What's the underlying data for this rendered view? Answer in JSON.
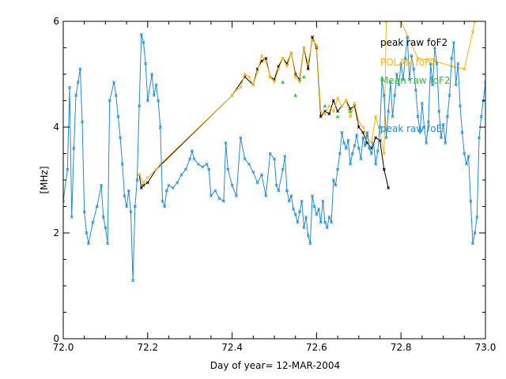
{
  "chart_data": {
    "type": "line",
    "title": "",
    "xlabel": "Day of year= 12-MAR-2004",
    "ylabel": "[MHz]",
    "xlim": [
      72.0,
      73.0
    ],
    "ylim": [
      0,
      6
    ],
    "x_ticks": [
      "72.0",
      "72.2",
      "72.4",
      "72.6",
      "72.8",
      "73.0"
    ],
    "y_ticks": [
      "0",
      "2",
      "4",
      "6"
    ],
    "legend": {
      "placement": "top-right",
      "entries": [
        {
          "label": "peak raw foF2",
          "color": "#000000"
        },
        {
          "label": "POLAN foF2",
          "color": "#ffb400"
        },
        {
          "label": "Mean raw foF2",
          "color": "#22cc22"
        },
        {
          "label": "peak raw foE",
          "color": "#1a8ce6"
        }
      ]
    },
    "series": [
      {
        "name": "peak raw foF2",
        "color": "#000000",
        "marker": "x",
        "points": [
          [
            72.18,
            3.1
          ],
          [
            72.185,
            2.85
          ],
          [
            72.19,
            2.9
          ],
          [
            72.2,
            2.95
          ],
          [
            72.22,
            3.2
          ],
          [
            72.4,
            4.6
          ],
          [
            72.43,
            4.95
          ],
          [
            72.45,
            4.8
          ],
          [
            72.46,
            5.1
          ],
          [
            72.47,
            5.25
          ],
          [
            72.48,
            5.3
          ],
          [
            72.49,
            4.95
          ],
          [
            72.5,
            4.9
          ],
          [
            72.51,
            5.15
          ],
          [
            72.52,
            5.3
          ],
          [
            72.53,
            5.2
          ],
          [
            72.54,
            5.4
          ],
          [
            72.55,
            5.0
          ],
          [
            72.56,
            4.9
          ],
          [
            72.57,
            5.5
          ],
          [
            72.58,
            5.1
          ],
          [
            72.59,
            5.7
          ],
          [
            72.6,
            5.5
          ],
          [
            72.61,
            4.2
          ],
          [
            72.62,
            4.3
          ],
          [
            72.63,
            4.25
          ],
          [
            72.64,
            4.5
          ],
          [
            72.65,
            4.3
          ],
          [
            72.66,
            4.4
          ],
          [
            72.67,
            4.5
          ],
          [
            72.68,
            4.35
          ],
          [
            72.69,
            4.4
          ],
          [
            72.7,
            4.0
          ],
          [
            72.71,
            3.9
          ],
          [
            72.72,
            3.7
          ],
          [
            72.73,
            3.6
          ],
          [
            72.74,
            3.8
          ],
          [
            72.75,
            3.75
          ],
          [
            72.76,
            3.2
          ],
          [
            72.77,
            2.85
          ]
        ]
      },
      {
        "name": "POLAN foF2",
        "color": "#ffb400",
        "marker": "x",
        "points": [
          [
            72.18,
            3.1
          ],
          [
            72.19,
            2.95
          ],
          [
            72.2,
            3.05
          ],
          [
            72.22,
            3.2
          ],
          [
            72.23,
            3.3
          ],
          [
            72.4,
            4.6
          ],
          [
            72.41,
            4.7
          ],
          [
            72.42,
            4.75
          ],
          [
            72.43,
            5.0
          ],
          [
            72.44,
            4.95
          ],
          [
            72.45,
            4.8
          ],
          [
            72.46,
            5.05
          ],
          [
            72.47,
            5.35
          ],
          [
            72.48,
            5.25
          ],
          [
            72.49,
            4.95
          ],
          [
            72.5,
            4.85
          ],
          [
            72.51,
            5.1
          ],
          [
            72.52,
            5.3
          ],
          [
            72.53,
            5.15
          ],
          [
            72.54,
            5.4
          ],
          [
            72.55,
            4.95
          ],
          [
            72.56,
            4.85
          ],
          [
            72.57,
            5.5
          ],
          [
            72.58,
            5.2
          ],
          [
            72.59,
            5.65
          ],
          [
            72.6,
            5.55
          ],
          [
            72.61,
            4.3
          ],
          [
            72.62,
            4.25
          ],
          [
            72.63,
            4.4
          ],
          [
            72.64,
            4.3
          ],
          [
            72.65,
            4.55
          ],
          [
            72.66,
            4.4
          ],
          [
            72.67,
            4.5
          ],
          [
            72.68,
            4.2
          ],
          [
            72.69,
            4.45
          ],
          [
            72.7,
            4.1
          ],
          [
            72.71,
            4.0
          ],
          [
            72.72,
            3.8
          ],
          [
            72.73,
            3.7
          ],
          [
            72.74,
            4.2
          ],
          [
            72.75,
            3.9
          ],
          [
            72.76,
            3.5
          ],
          [
            72.765,
            6.0
          ],
          [
            72.8,
            6.0
          ],
          [
            72.84,
            5.3
          ],
          [
            72.88,
            5.25
          ],
          [
            72.92,
            5.15
          ],
          [
            72.95,
            5.1
          ],
          [
            72.97,
            5.8
          ],
          [
            72.975,
            6.0
          ]
        ]
      },
      {
        "name": "Mean raw foF2",
        "color": "#22cc22",
        "marker": "triangle",
        "points": [
          [
            72.52,
            4.85
          ],
          [
            72.55,
            4.6
          ],
          [
            72.57,
            4.95
          ],
          [
            72.62,
            4.4
          ],
          [
            72.65,
            4.2
          ],
          [
            72.68,
            4.3
          ],
          [
            72.72,
            3.85
          ]
        ]
      },
      {
        "name": "peak raw foE",
        "color": "#1a8ce6",
        "marker": "x",
        "points": [
          [
            72.0,
            2.6
          ],
          [
            72.01,
            3.2
          ],
          [
            72.015,
            4.75
          ],
          [
            72.02,
            2.3
          ],
          [
            72.025,
            3.6
          ],
          [
            72.03,
            4.6
          ],
          [
            72.035,
            4.85
          ],
          [
            72.04,
            5.1
          ],
          [
            72.045,
            4.1
          ],
          [
            72.05,
            2.4
          ],
          [
            72.055,
            2.0
          ],
          [
            72.06,
            1.8
          ],
          [
            72.07,
            2.2
          ],
          [
            72.08,
            2.5
          ],
          [
            72.09,
            2.9
          ],
          [
            72.095,
            2.3
          ],
          [
            72.1,
            2.1
          ],
          [
            72.105,
            1.8
          ],
          [
            72.11,
            4.5
          ],
          [
            72.12,
            4.85
          ],
          [
            72.125,
            4.6
          ],
          [
            72.13,
            4.2
          ],
          [
            72.135,
            3.8
          ],
          [
            72.14,
            3.3
          ],
          [
            72.145,
            2.7
          ],
          [
            72.15,
            2.5
          ],
          [
            72.155,
            2.8
          ],
          [
            72.16,
            2.4
          ],
          [
            72.165,
            1.1
          ],
          [
            72.17,
            2.5
          ],
          [
            72.175,
            3.0
          ],
          [
            72.18,
            4.4
          ],
          [
            72.185,
            5.75
          ],
          [
            72.19,
            5.6
          ],
          [
            72.195,
            5.2
          ],
          [
            72.2,
            4.5
          ],
          [
            72.21,
            5.0
          ],
          [
            72.215,
            4.6
          ],
          [
            72.22,
            4.8
          ],
          [
            72.225,
            4.5
          ],
          [
            72.23,
            4.0
          ],
          [
            72.235,
            2.6
          ],
          [
            72.24,
            2.5
          ],
          [
            72.245,
            2.8
          ],
          [
            72.25,
            2.9
          ],
          [
            72.26,
            2.85
          ],
          [
            72.27,
            2.95
          ],
          [
            72.28,
            3.1
          ],
          [
            72.29,
            3.2
          ],
          [
            72.3,
            3.4
          ],
          [
            72.305,
            3.55
          ],
          [
            72.31,
            3.4
          ],
          [
            72.32,
            3.3
          ],
          [
            72.33,
            3.25
          ],
          [
            72.34,
            3.3
          ],
          [
            72.345,
            3.2
          ],
          [
            72.35,
            2.7
          ],
          [
            72.36,
            2.8
          ],
          [
            72.37,
            2.65
          ],
          [
            72.38,
            2.6
          ],
          [
            72.385,
            3.7
          ],
          [
            72.39,
            3.2
          ],
          [
            72.4,
            2.9
          ],
          [
            72.41,
            2.7
          ],
          [
            72.42,
            3.8
          ],
          [
            72.43,
            3.4
          ],
          [
            72.44,
            3.3
          ],
          [
            72.45,
            3.15
          ],
          [
            72.46,
            2.95
          ],
          [
            72.47,
            3.1
          ],
          [
            72.48,
            2.7
          ],
          [
            72.49,
            3.5
          ],
          [
            72.5,
            3.4
          ],
          [
            72.505,
            2.9
          ],
          [
            72.51,
            2.8
          ],
          [
            72.52,
            3.2
          ],
          [
            72.525,
            3.45
          ],
          [
            72.53,
            2.8
          ],
          [
            72.535,
            2.6
          ],
          [
            72.54,
            2.7
          ],
          [
            72.545,
            2.45
          ],
          [
            72.55,
            2.35
          ],
          [
            72.555,
            2.2
          ],
          [
            72.56,
            2.4
          ],
          [
            72.565,
            2.6
          ],
          [
            72.57,
            2.1
          ],
          [
            72.575,
            2.3
          ],
          [
            72.58,
            1.95
          ],
          [
            72.585,
            1.8
          ],
          [
            72.59,
            2.7
          ],
          [
            72.595,
            2.5
          ],
          [
            72.6,
            2.35
          ],
          [
            72.605,
            2.45
          ],
          [
            72.61,
            2.2
          ],
          [
            72.615,
            2.6
          ],
          [
            72.62,
            2.2
          ],
          [
            72.625,
            2.1
          ],
          [
            72.63,
            2.3
          ],
          [
            72.635,
            2.2
          ],
          [
            72.64,
            3.0
          ],
          [
            72.645,
            2.9
          ],
          [
            72.65,
            3.2
          ],
          [
            72.655,
            3.5
          ],
          [
            72.66,
            3.9
          ],
          [
            72.665,
            3.7
          ],
          [
            72.67,
            3.6
          ],
          [
            72.675,
            3.75
          ],
          [
            72.68,
            3.3
          ],
          [
            72.685,
            3.5
          ],
          [
            72.69,
            3.65
          ],
          [
            72.695,
            3.85
          ],
          [
            72.7,
            3.6
          ],
          [
            72.705,
            3.4
          ],
          [
            72.71,
            3.8
          ],
          [
            72.715,
            3.65
          ],
          [
            72.72,
            3.9
          ],
          [
            72.725,
            3.6
          ],
          [
            72.73,
            3.5
          ],
          [
            72.735,
            3.7
          ],
          [
            72.74,
            3.3
          ],
          [
            72.745,
            3.55
          ],
          [
            72.75,
            4.0
          ],
          [
            72.755,
            4.9
          ],
          [
            72.76,
            4.6
          ],
          [
            72.765,
            3.8
          ],
          [
            72.77,
            4.3
          ],
          [
            72.775,
            4.85
          ],
          [
            72.78,
            4.2
          ],
          [
            72.785,
            4.6
          ],
          [
            72.79,
            5.0
          ],
          [
            72.795,
            4.8
          ],
          [
            72.8,
            5.2
          ],
          [
            72.805,
            4.9
          ],
          [
            72.81,
            5.3
          ],
          [
            72.815,
            5.7
          ],
          [
            72.82,
            4.9
          ],
          [
            72.825,
            5.35
          ],
          [
            72.83,
            5.1
          ],
          [
            72.835,
            4.7
          ],
          [
            72.84,
            4.2
          ],
          [
            72.845,
            3.9
          ],
          [
            72.85,
            4.45
          ],
          [
            72.855,
            4.0
          ],
          [
            72.86,
            3.7
          ],
          [
            72.865,
            4.1
          ],
          [
            72.87,
            5.2
          ],
          [
            72.875,
            4.8
          ],
          [
            72.88,
            5.5
          ],
          [
            72.885,
            5.2
          ],
          [
            72.89,
            4.3
          ],
          [
            72.895,
            3.8
          ],
          [
            72.9,
            4.05
          ],
          [
            72.905,
            3.7
          ],
          [
            72.91,
            4.2
          ],
          [
            72.915,
            4.6
          ],
          [
            72.92,
            5.3
          ],
          [
            72.925,
            5.6
          ],
          [
            72.93,
            4.8
          ],
          [
            72.935,
            5.2
          ],
          [
            72.94,
            4.4
          ],
          [
            72.945,
            3.9
          ],
          [
            72.95,
            3.5
          ],
          [
            72.955,
            3.3
          ],
          [
            72.96,
            3.45
          ],
          [
            72.965,
            2.6
          ],
          [
            72.97,
            1.8
          ],
          [
            72.975,
            2.0
          ],
          [
            72.98,
            2.3
          ],
          [
            72.985,
            3.8
          ],
          [
            72.99,
            4.2
          ],
          [
            72.995,
            4.5
          ],
          [
            73.0,
            4.85
          ]
        ]
      }
    ]
  }
}
